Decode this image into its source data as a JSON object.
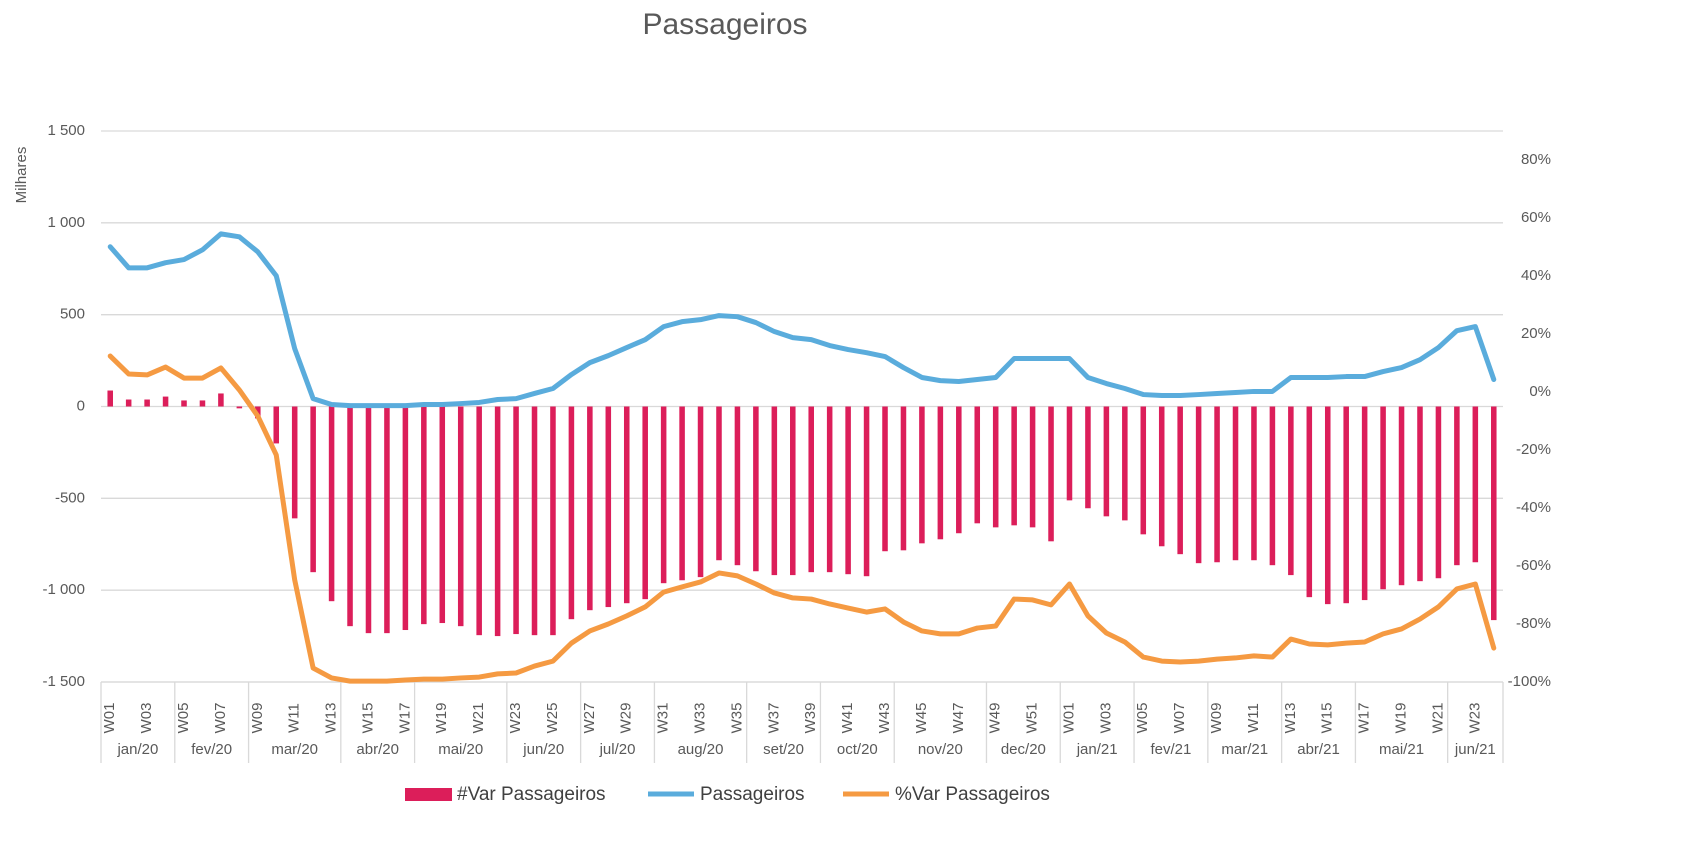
{
  "chart_data": {
    "type": "combo",
    "title": "Passageiros",
    "ylabel": "Milhares",
    "categories": [
      "W01",
      null,
      "W03",
      null,
      "W05",
      null,
      "W07",
      null,
      "W09",
      null,
      "W11",
      null,
      "W13",
      null,
      "W15",
      null,
      "W17",
      null,
      "W19",
      null,
      "W21",
      null,
      "W23",
      null,
      "W25",
      null,
      "W27",
      null,
      "W29",
      null,
      "W31",
      null,
      "W33",
      null,
      "W35",
      null,
      "W37",
      null,
      "W39",
      null,
      "W41",
      null,
      "W43",
      null,
      "W45",
      null,
      "W47",
      null,
      "W49",
      null,
      "W51",
      null,
      "W01",
      null,
      "W03",
      null,
      "W05",
      null,
      "W07",
      null,
      "W09",
      null,
      "W11",
      null,
      "W13",
      null,
      "W15",
      null,
      "W17",
      null,
      "W19",
      null,
      "W21",
      null,
      "W23",
      null
    ],
    "months": [
      {
        "label": "jan/20",
        "weeks": 4
      },
      {
        "label": "fev/20",
        "weeks": 4
      },
      {
        "label": "mar/20",
        "weeks": 5
      },
      {
        "label": "abr/20",
        "weeks": 4
      },
      {
        "label": "mai/20",
        "weeks": 5
      },
      {
        "label": "jun/20",
        "weeks": 4
      },
      {
        "label": "jul/20",
        "weeks": 4
      },
      {
        "label": "aug/20",
        "weeks": 5
      },
      {
        "label": "set/20",
        "weeks": 4
      },
      {
        "label": "oct/20",
        "weeks": 4
      },
      {
        "label": "nov/20",
        "weeks": 5
      },
      {
        "label": "dec/20",
        "weeks": 4
      },
      {
        "label": "jan/21",
        "weeks": 4
      },
      {
        "label": "fev/21",
        "weeks": 4
      },
      {
        "label": "mar/21",
        "weeks": 4
      },
      {
        "label": "abr/21",
        "weeks": 4
      },
      {
        "label": "mai/21",
        "weeks": 5
      },
      {
        "label": "jun/21",
        "weeks": 3
      }
    ],
    "series": [
      {
        "name": "#Var Passageiros",
        "type": "bar",
        "axis": "y",
        "color": "#dc1e5a",
        "values": [
          87,
          38,
          38,
          54,
          33,
          33,
          71,
          -10,
          -65,
          -201,
          -609,
          -902,
          -1060,
          -1196,
          -1234,
          -1234,
          -1217,
          -1185,
          -1179,
          -1196,
          -1245,
          -1250,
          -1239,
          -1245,
          -1245,
          -1158,
          -1109,
          -1092,
          -1071,
          -1049,
          -962,
          -946,
          -929,
          -837,
          -864,
          -897,
          -918,
          -918,
          -902,
          -902,
          -913,
          -924,
          -788,
          -783,
          -745,
          -723,
          -690,
          -636,
          -658,
          -647,
          -658,
          -734,
          -511,
          -554,
          -598,
          -620,
          -696,
          -761,
          -804,
          -853,
          -848,
          -837,
          -837,
          -864,
          -918,
          -1038,
          -1076,
          -1071,
          -1054,
          -995,
          -973,
          -951,
          -935,
          -864,
          -848,
          -1163
        ]
      },
      {
        "name": "Passageiros",
        "type": "line",
        "axis": "y",
        "color": "#5aacdc",
        "values": [
          870,
          755,
          755,
          783,
          800,
          853,
          940,
          924,
          842,
          712,
          315,
          43,
          11,
          5,
          5,
          5,
          5,
          11,
          11,
          16,
          22,
          38,
          43,
          71,
          98,
          174,
          239,
          277,
          321,
          364,
          435,
          462,
          473,
          495,
          489,
          457,
          408,
          375,
          364,
          332,
          310,
          293,
          272,
          212,
          158,
          141,
          136,
          147,
          158,
          261,
          261,
          261,
          261,
          158,
          125,
          98,
          65,
          60,
          60,
          65,
          71,
          76,
          82,
          82,
          158,
          158,
          158,
          163,
          163,
          190,
          212,
          255,
          321,
          413,
          435,
          147
        ]
      },
      {
        "name": "%Var Passageiros",
        "type": "line",
        "axis": "y2",
        "color": "#f59a42",
        "values": [
          12.4,
          6.2,
          5.9,
          8.6,
          4.8,
          4.8,
          8.3,
          0.7,
          -8.3,
          -21.7,
          -64.8,
          -95.2,
          -98.6,
          -99.7,
          -99.7,
          -99.7,
          -99.3,
          -99,
          -99,
          -98.6,
          -98.3,
          -97.2,
          -96.9,
          -94.5,
          -92.8,
          -86.6,
          -82.4,
          -80,
          -77.2,
          -74.1,
          -69,
          -67.2,
          -65.5,
          -62.4,
          -63.4,
          -66.2,
          -69.3,
          -71,
          -71.4,
          -73.1,
          -74.5,
          -75.9,
          -74.8,
          -79.3,
          -82.4,
          -83.4,
          -83.4,
          -81.4,
          -80.7,
          -71.4,
          -71.7,
          -73.4,
          -66.2,
          -77.2,
          -83.1,
          -86.2,
          -91.4,
          -92.8,
          -93.1,
          -92.8,
          -92.1,
          -91.7,
          -91,
          -91.4,
          -85.2,
          -86.9,
          -87.2,
          -86.6,
          -86.2,
          -83.4,
          -81.7,
          -78.3,
          -74.1,
          -67.9,
          -66.2,
          -88.3
        ]
      }
    ],
    "ylim": [
      -1500,
      1500
    ],
    "yticks": [
      {
        "value": -1500,
        "label": "-1 500"
      },
      {
        "value": -1000,
        "label": "-1 000"
      },
      -500,
      0,
      500,
      {
        "value": 1000,
        "label": "1 000"
      },
      {
        "value": 1500,
        "label": "1 500"
      }
    ],
    "y2lim": [
      -100,
      90
    ],
    "y2ticks": [
      {
        "value": -100,
        "label": "-100%"
      },
      {
        "value": -80,
        "label": "-80%"
      },
      {
        "value": -60,
        "label": "-60%"
      },
      {
        "value": -40,
        "label": "-40%"
      },
      {
        "value": -20,
        "label": "-20%"
      },
      {
        "value": 0,
        "label": "0%"
      },
      {
        "value": 20,
        "label": "20%"
      },
      {
        "value": 40,
        "label": "40%"
      },
      {
        "value": 60,
        "label": "60%"
      },
      {
        "value": 80,
        "label": "80%"
      }
    ],
    "grid": true,
    "legend": "bottom"
  }
}
